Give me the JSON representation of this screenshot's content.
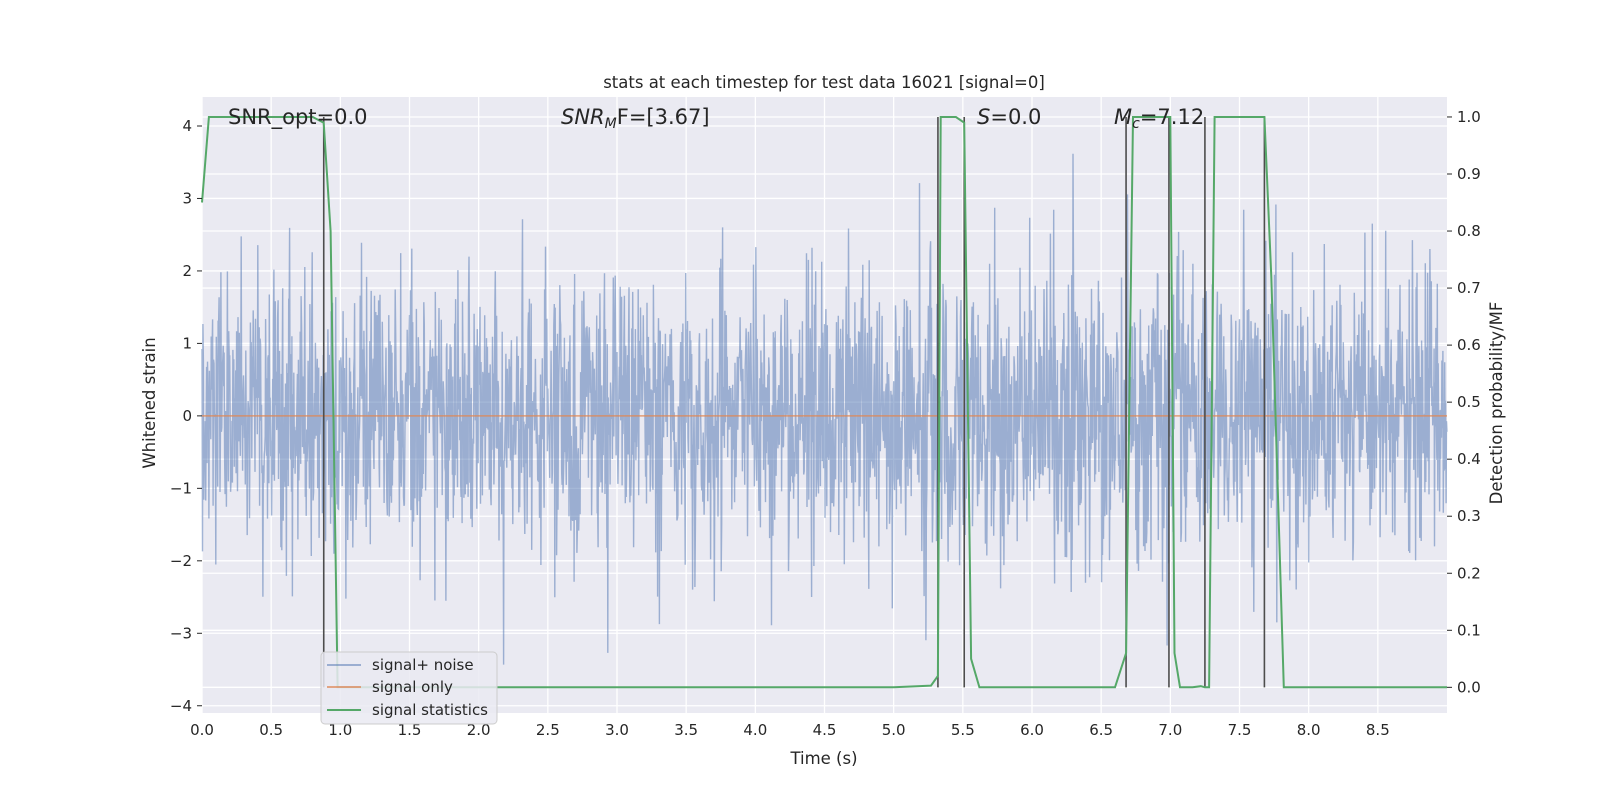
{
  "chart_data": {
    "type": "line",
    "title": "stats at each timestep for test data 16021 [signal=0]",
    "xlabel": "Time (s)",
    "ylabel": "Whitened strain",
    "y2label": "Detection probability/MF",
    "xlim": [
      0.0,
      9.0
    ],
    "ylim": [
      -4.1,
      4.4
    ],
    "y2lim": [
      -0.045,
      1.035
    ],
    "xticks": [
      "0.0",
      "0.5",
      "1.0",
      "1.5",
      "2.0",
      "2.5",
      "3.0",
      "3.5",
      "4.0",
      "4.5",
      "5.0",
      "5.5",
      "6.0",
      "6.5",
      "7.0",
      "7.5",
      "8.0",
      "8.5"
    ],
    "yticks": [
      "−4",
      "−3",
      "−2",
      "−1",
      "0",
      "1",
      "2",
      "3",
      "4"
    ],
    "y2ticks": [
      "0.0",
      "0.1",
      "0.2",
      "0.3",
      "0.4",
      "0.5",
      "0.6",
      "0.7",
      "0.8",
      "0.9",
      "1.0"
    ],
    "grid": true,
    "legend_position": "lower-left",
    "annotations": {
      "snr_opt": "SNR_opt=0.0",
      "snr_mf_main": "SNR",
      "snr_mf_sub": "M",
      "snr_mf_rest": "F=[3.67]",
      "s_main": "S",
      "s_rest": "=0.0",
      "mc_main": "M",
      "mc_sub": "c",
      "mc_rest": "=7.12"
    },
    "series": [
      {
        "name": "signal+ noise",
        "color": "#4c72b0",
        "axis": "left",
        "style": "dense-noise",
        "sample_rate_hz": 300,
        "duration_s": 9.0,
        "std": 0.95
      },
      {
        "name": "signal only",
        "color": "#dd8452",
        "axis": "left",
        "x": [
          0.0,
          9.0
        ],
        "y": [
          0.0,
          0.0
        ]
      },
      {
        "name": "signal statistics",
        "color": "#55a868",
        "axis": "right",
        "x": [
          0.0,
          0.05,
          0.1,
          0.15,
          0.2,
          0.3,
          0.4,
          0.5,
          0.6,
          0.7,
          0.8,
          0.88,
          0.93,
          0.98,
          1.05,
          1.2,
          2.0,
          3.0,
          4.0,
          5.0,
          5.27,
          5.32,
          5.34,
          5.38,
          5.45,
          5.51,
          5.56,
          5.62,
          5.7,
          6.0,
          6.6,
          6.68,
          6.73,
          6.78,
          6.82,
          6.9,
          7.0,
          7.03,
          7.07,
          7.16,
          7.22,
          7.25,
          7.28,
          7.32,
          7.4,
          7.55,
          7.68,
          7.73,
          7.82,
          8.0,
          9.0
        ],
        "y": [
          0.85,
          1.0,
          1.0,
          1.0,
          1.0,
          1.0,
          1.0,
          1.0,
          1.0,
          1.0,
          1.0,
          0.99,
          0.8,
          0.0,
          0.0,
          0.0,
          0.0,
          0.0,
          0.0,
          0.0,
          0.003,
          0.02,
          1.0,
          1.0,
          1.0,
          0.99,
          0.05,
          0.0,
          0.0,
          0.0,
          0.0,
          0.06,
          1.0,
          1.0,
          1.0,
          1.0,
          1.0,
          0.06,
          0.0,
          0.0,
          0.002,
          0.0,
          0.0,
          1.0,
          1.0,
          1.0,
          1.0,
          0.72,
          0.0,
          0.0,
          0.0
        ]
      }
    ],
    "vlines": {
      "color": "#4d4d4d",
      "x": [
        0.88,
        5.32,
        5.51,
        6.68,
        6.99,
        7.25,
        7.68
      ],
      "y2_range": [
        0.0,
        1.0
      ]
    }
  }
}
